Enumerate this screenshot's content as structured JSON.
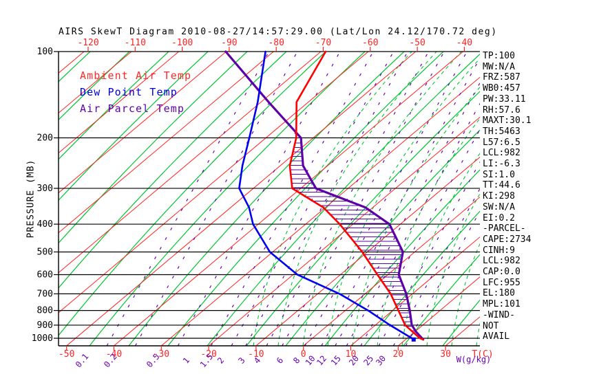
{
  "title": "AIRS SkewT Diagram 2010-08-27/14:57:29.00 (Lat/Lon 24.12/170.72 deg)",
  "colors": {
    "ambient": "#ff0000",
    "dewpoint": "#0000ee",
    "parcel": "#5c00a8",
    "isotherm_grid": "#ff2222",
    "adiabat_grid": "#00c432",
    "mixing_grid": "#6a00b4",
    "axis": "#000000"
  },
  "legend": {
    "items": [
      {
        "label": "Ambient Air Temp",
        "color": "#ff2a2a"
      },
      {
        "label": "Dew Point Temp",
        "color": "#0000dd"
      },
      {
        "label": "Air Parcel Temp",
        "color": "#5c00a8"
      }
    ]
  },
  "y_axis": {
    "label": "PRESSURE (MB)",
    "ticks": [
      100,
      200,
      300,
      400,
      500,
      600,
      700,
      800,
      900,
      1000
    ]
  },
  "x_axis_top": {
    "ticks": [
      -120,
      -110,
      -100,
      -90,
      -80,
      -70,
      -60,
      -50,
      -40
    ]
  },
  "x_axis_bottom": {
    "ticks": [
      -50,
      -40,
      -30,
      -20,
      -10,
      0,
      10,
      20,
      30
    ],
    "unit_label": "T(C)"
  },
  "mixing_axis": {
    "labels": [
      "0.1",
      "0.2",
      "0.5",
      "1",
      "1.5",
      "2",
      "3",
      "4",
      "6",
      "8",
      "10",
      "12",
      "15",
      "20",
      "25",
      "30"
    ],
    "unit_label": "W(g/kg)"
  },
  "panel": {
    "lines": [
      "TP:100",
      "MW:N/A",
      "FRZ:587",
      "WB0:457",
      "PW:33.11",
      "RH:57.6",
      "MAXT:30.1",
      "TH:5463",
      "L57:6.5",
      "LCL:982",
      "LI:-6.3",
      "SI:1.0",
      "TT:44.6",
      "KI:298",
      "SW:N/A",
      "EI:0.2",
      "-PARCEL-",
      "CAPE:2734",
      "CINH:9",
      "LCL:982",
      "CAP:0.0",
      "LFC:955",
      "EL:180",
      "MPL:101",
      "-WIND-",
      "NOT",
      "AVAIL"
    ]
  },
  "chart_data": {
    "type": "line",
    "variant": "skew-t log-p atmospheric sounding",
    "title": "AIRS SkewT Diagram 2010-08-27/14:57:29.00 (Lat/Lon 24.12/170.72 deg)",
    "xlabel": "T(C)",
    "ylabel": "PRESSURE (MB)",
    "pressure_axis_mb": {
      "min": 100,
      "max": 1000,
      "scale": "log",
      "ticks": [
        100,
        200,
        300,
        400,
        500,
        600,
        700,
        800,
        900,
        1000
      ]
    },
    "temp_ticks_top_c": [
      -120,
      -110,
      -100,
      -90,
      -80,
      -70,
      -60,
      -50,
      -40
    ],
    "temp_ticks_bottom_c": [
      -50,
      -40,
      -30,
      -20,
      -10,
      0,
      10,
      20,
      30
    ],
    "isotherm_step_c": 10,
    "mixing_ratio_lines_g_per_kg": [
      0.1,
      0.2,
      0.5,
      1,
      1.5,
      2,
      3,
      4,
      6,
      8,
      10,
      12,
      15,
      20,
      25,
      30
    ],
    "mixing_line_base_dewpoint_c": [
      -41.5,
      -35.5,
      -26.5,
      -19.5,
      -15.2,
      -12.2,
      -7.8,
      -4.5,
      0.3,
      3.8,
      6.7,
      9.1,
      12.1,
      15.9,
      19.0,
      21.6
    ],
    "series": [
      {
        "name": "Ambient Air Temp",
        "color": "#ff0000",
        "points_p_t": [
          [
            100,
            -69.0
          ],
          [
            150,
            -62.5
          ],
          [
            200,
            -53.6
          ],
          [
            250,
            -48.0
          ],
          [
            300,
            -41.8
          ],
          [
            350,
            -30.4
          ],
          [
            400,
            -22.8
          ],
          [
            500,
            -11.1
          ],
          [
            600,
            -2.2
          ],
          [
            700,
            5.4
          ],
          [
            800,
            11.2
          ],
          [
            900,
            16.3
          ],
          [
            1000,
            22.7
          ],
          [
            1010,
            23.7
          ]
        ]
      },
      {
        "name": "Dew Point Temp",
        "color": "#0000ee",
        "points_p_t": [
          [
            100,
            -81.7
          ],
          [
            150,
            -70.7
          ],
          [
            200,
            -63.5
          ],
          [
            250,
            -58.0
          ],
          [
            300,
            -53.0
          ],
          [
            350,
            -46.1
          ],
          [
            400,
            -41.1
          ],
          [
            500,
            -30.6
          ],
          [
            600,
            -19.1
          ],
          [
            700,
            -5.4
          ],
          [
            800,
            4.8
          ],
          [
            900,
            13.1
          ],
          [
            1000,
            21.0
          ],
          [
            1010,
            21.9
          ]
        ]
      },
      {
        "name": "Air Parcel Temp",
        "color": "#5c00a8",
        "points_p_t": [
          [
            100,
            -90.1
          ],
          [
            150,
            -68.4
          ],
          [
            200,
            -52.6
          ],
          [
            250,
            -45.2
          ],
          [
            300,
            -36.8
          ],
          [
            350,
            -21.5
          ],
          [
            400,
            -12.3
          ],
          [
            500,
            -2.5
          ],
          [
            600,
            2.3
          ],
          [
            700,
            8.7
          ],
          [
            800,
            13.6
          ],
          [
            900,
            17.7
          ],
          [
            950,
            20.3
          ],
          [
            1010,
            23.7
          ]
        ]
      }
    ],
    "hatched_region": {
      "description": "CAPE area hatched with horizontal purple lines between Ambient Air Temp and Air Parcel Temp curves",
      "from_mb": 200,
      "to_mb": 1000
    },
    "grid": {
      "isotherms_on": true,
      "dry_adiabats_on": true,
      "moist_adiabats_on": true,
      "legend_position": "top-left"
    }
  }
}
